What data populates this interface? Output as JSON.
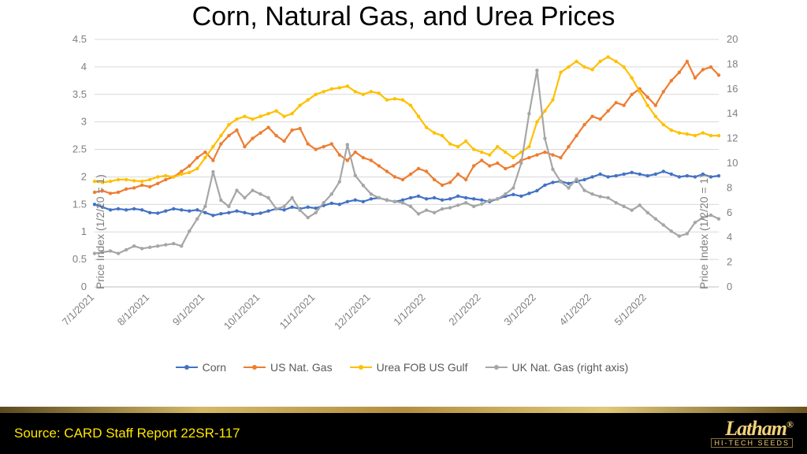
{
  "title": "Corn, Natural Gas, and Urea Prices",
  "source": "Source:  CARD Staff Report 22SR-117",
  "logo": {
    "main": "Latham",
    "reg": "®",
    "sub": "HI-TECH SEEDS"
  },
  "chart": {
    "type": "line",
    "background_color": "#ffffff",
    "grid_color": "#d9d9d9",
    "axis_color": "#bfbfbf",
    "tick_fontsize": 13,
    "left_axis": {
      "label": "Price Index (1/2/20 = 1)",
      "min": 0,
      "max": 4.5,
      "step": 0.5
    },
    "right_axis": {
      "label": "Price Index (1/2/20 = 1)",
      "min": 0,
      "max": 20,
      "step": 2
    },
    "x_labels": [
      "7/1/2021",
      "8/1/2021",
      "9/1/2021",
      "10/1/2021",
      "11/1/2021",
      "12/1/2021",
      "1/1/2022",
      "2/1/2022",
      "3/1/2022",
      "4/1/2022",
      "5/1/2022"
    ],
    "legend": [
      {
        "name": "Corn",
        "color": "#4472c4"
      },
      {
        "name": "US Nat. Gas",
        "color": "#ed7d31"
      },
      {
        "name": "Urea FOB US Gulf",
        "color": "#ffc000"
      },
      {
        "name": "UK Nat. Gas (right axis)",
        "color": "#a6a6a6"
      }
    ],
    "line_width": 2.2,
    "marker_radius": 2.2,
    "series": [
      {
        "key": "corn",
        "axis": "left",
        "color": "#4472c4",
        "y": [
          1.5,
          1.45,
          1.4,
          1.42,
          1.4,
          1.42,
          1.4,
          1.35,
          1.34,
          1.38,
          1.42,
          1.4,
          1.38,
          1.4,
          1.35,
          1.3,
          1.33,
          1.35,
          1.38,
          1.35,
          1.32,
          1.34,
          1.38,
          1.42,
          1.4,
          1.45,
          1.42,
          1.45,
          1.43,
          1.48,
          1.52,
          1.5,
          1.55,
          1.58,
          1.55,
          1.6,
          1.62,
          1.58,
          1.55,
          1.58,
          1.62,
          1.65,
          1.6,
          1.62,
          1.58,
          1.6,
          1.65,
          1.62,
          1.6,
          1.58,
          1.55,
          1.6,
          1.65,
          1.68,
          1.65,
          1.7,
          1.75,
          1.85,
          1.9,
          1.92,
          1.88,
          1.92,
          1.95,
          2.0,
          2.05,
          2.0,
          2.02,
          2.05,
          2.08,
          2.05,
          2.02,
          2.05,
          2.1,
          2.05,
          2.0,
          2.02,
          2.0,
          2.05,
          2.0,
          2.02
        ]
      },
      {
        "key": "usng",
        "axis": "left",
        "color": "#ed7d31",
        "y": [
          1.72,
          1.75,
          1.7,
          1.72,
          1.78,
          1.8,
          1.85,
          1.82,
          1.88,
          1.95,
          2.0,
          2.1,
          2.2,
          2.35,
          2.45,
          2.3,
          2.6,
          2.75,
          2.85,
          2.55,
          2.7,
          2.8,
          2.9,
          2.75,
          2.65,
          2.85,
          2.88,
          2.6,
          2.5,
          2.55,
          2.6,
          2.4,
          2.3,
          2.45,
          2.35,
          2.3,
          2.2,
          2.1,
          2.0,
          1.95,
          2.05,
          2.15,
          2.1,
          1.95,
          1.85,
          1.9,
          2.05,
          1.95,
          2.2,
          2.3,
          2.2,
          2.25,
          2.15,
          2.2,
          2.3,
          2.35,
          2.4,
          2.45,
          2.4,
          2.35,
          2.55,
          2.75,
          2.95,
          3.1,
          3.05,
          3.2,
          3.35,
          3.3,
          3.5,
          3.6,
          3.45,
          3.3,
          3.55,
          3.75,
          3.9,
          4.1,
          3.8,
          3.95,
          4.0,
          3.85
        ]
      },
      {
        "key": "urea",
        "axis": "left",
        "color": "#ffc000",
        "y": [
          1.92,
          1.9,
          1.92,
          1.95,
          1.95,
          1.93,
          1.92,
          1.95,
          2.0,
          2.02,
          2.0,
          2.05,
          2.08,
          2.15,
          2.35,
          2.55,
          2.75,
          2.95,
          3.05,
          3.1,
          3.05,
          3.1,
          3.15,
          3.2,
          3.1,
          3.15,
          3.3,
          3.4,
          3.5,
          3.55,
          3.6,
          3.62,
          3.65,
          3.55,
          3.5,
          3.55,
          3.52,
          3.4,
          3.42,
          3.4,
          3.3,
          3.1,
          2.9,
          2.8,
          2.75,
          2.6,
          2.55,
          2.65,
          2.5,
          2.45,
          2.4,
          2.55,
          2.45,
          2.35,
          2.45,
          2.55,
          3.0,
          3.2,
          3.4,
          3.9,
          4.0,
          4.1,
          4.0,
          3.95,
          4.1,
          4.18,
          4.1,
          4.0,
          3.8,
          3.55,
          3.3,
          3.1,
          2.95,
          2.85,
          2.8,
          2.78,
          2.75,
          2.8,
          2.75,
          2.75
        ]
      },
      {
        "key": "ukng",
        "axis": "right",
        "color": "#a6a6a6",
        "y": [
          2.7,
          2.8,
          2.9,
          2.7,
          3.0,
          3.3,
          3.1,
          3.2,
          3.3,
          3.4,
          3.5,
          3.3,
          4.5,
          5.5,
          6.5,
          9.3,
          7.0,
          6.5,
          7.8,
          7.2,
          7.8,
          7.5,
          7.2,
          6.3,
          6.5,
          7.2,
          6.2,
          5.6,
          6.0,
          6.8,
          7.5,
          8.5,
          11.5,
          9.0,
          8.2,
          7.5,
          7.2,
          7.0,
          6.9,
          6.8,
          6.5,
          5.9,
          6.2,
          6.0,
          6.3,
          6.4,
          6.6,
          6.8,
          6.5,
          6.7,
          7.0,
          7.1,
          7.5,
          8.0,
          10.0,
          14.0,
          17.5,
          12.0,
          9.5,
          8.5,
          8.0,
          8.7,
          7.8,
          7.5,
          7.3,
          7.2,
          6.8,
          6.5,
          6.2,
          6.6,
          6.0,
          5.5,
          5.0,
          4.5,
          4.1,
          4.3,
          5.2,
          5.6,
          5.8,
          5.5
        ]
      }
    ]
  }
}
